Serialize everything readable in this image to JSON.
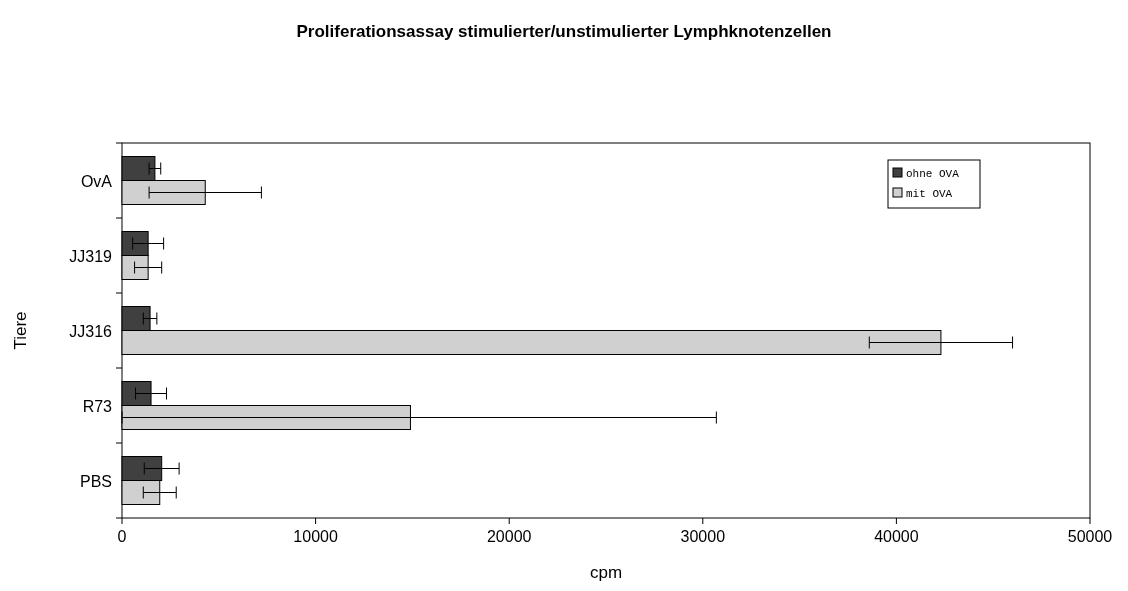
{
  "chart_data": {
    "type": "bar",
    "orientation": "horizontal",
    "title": "Proliferationsassay stimulierter/unstimulierter Lymphknotenzellen",
    "xlabel": "cpm",
    "ylabel": "Tiere",
    "categories": [
      "OvA",
      "JJ319",
      "JJ316",
      "R73",
      "PBS"
    ],
    "xlim": [
      0,
      50000
    ],
    "xticks": [
      0,
      10000,
      20000,
      30000,
      40000,
      50000
    ],
    "grid": false,
    "legend": "top right",
    "series": [
      {
        "name": "ohne OVA",
        "color": "#404040",
        "values": [
          1700,
          1350,
          1450,
          1500,
          2050
        ],
        "errors": [
          300,
          800,
          350,
          800,
          900
        ]
      },
      {
        "name": "mit OVA",
        "color": "#d0d0d0",
        "values": [
          4300,
          1350,
          42300,
          14900,
          1950
        ],
        "errors": [
          2900,
          700,
          3700,
          [
            0,
            30700
          ],
          850
        ]
      }
    ]
  }
}
